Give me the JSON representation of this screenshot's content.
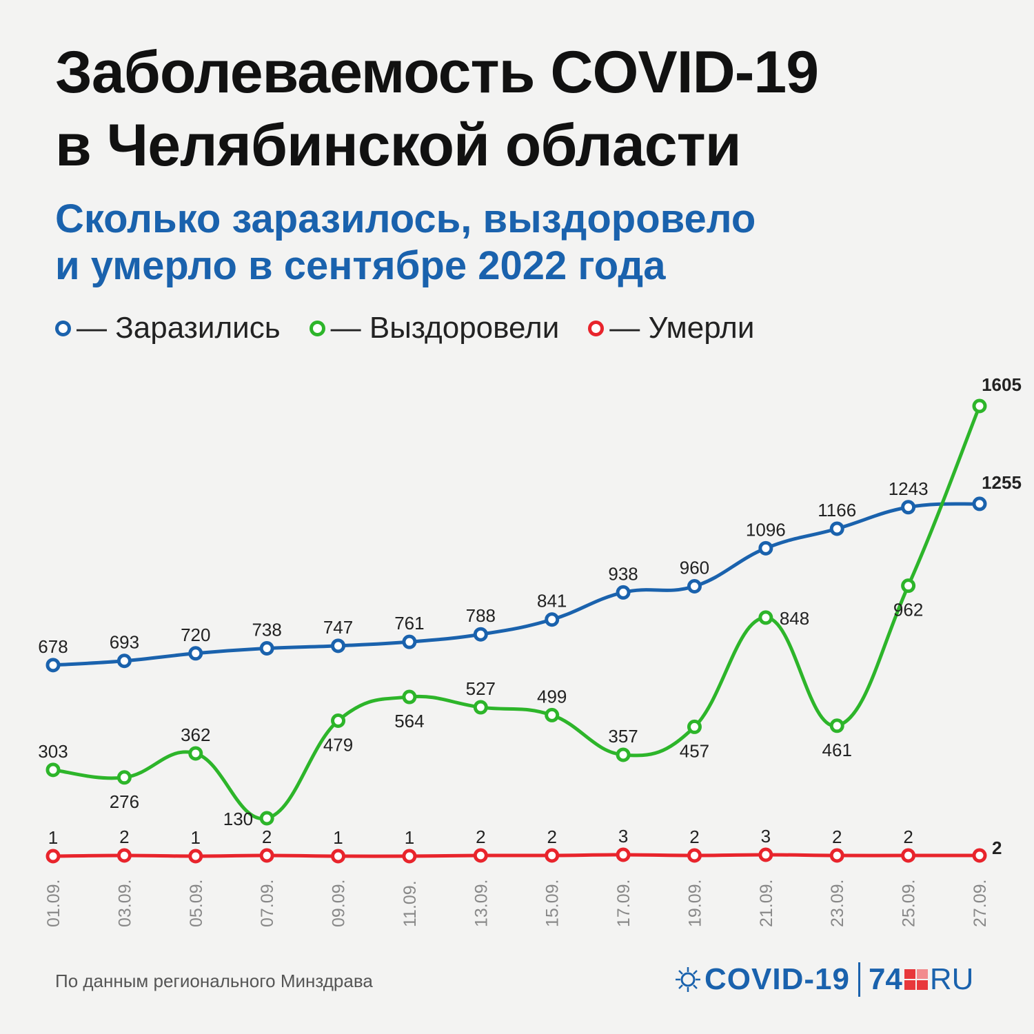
{
  "header": {
    "title_line1": "Заболеваемость COVID-19",
    "title_line2": "в Челябинской области",
    "subtitle_line1": "Сколько заразилось, выздоровело",
    "subtitle_line2": "и умерло в сентябре 2022 года"
  },
  "legend": [
    {
      "label": "— Заразились",
      "color": "#1a62ad"
    },
    {
      "label": "— Выздоровели",
      "color": "#2db52a"
    },
    {
      "label": "— Умерли",
      "color": "#e8242c"
    }
  ],
  "footer": {
    "source": "По данным регионального Минздрава",
    "logo_covid": "COVID-19",
    "logo_num": "74",
    "logo_ru": "RU"
  },
  "chart_data": {
    "type": "line",
    "x": [
      "01.09.",
      "03.09.",
      "05.09.",
      "07.09.",
      "09.09.",
      "11.09.",
      "13.09.",
      "15.09.",
      "17.09.",
      "19.09.",
      "21.09.",
      "23.09.",
      "25.09.",
      "27.09."
    ],
    "series": [
      {
        "name": "Заразились",
        "color": "#1a62ad",
        "values": [
          678,
          693,
          720,
          738,
          747,
          761,
          788,
          841,
          938,
          960,
          1096,
          1166,
          1243,
          1255
        ]
      },
      {
        "name": "Выздоровели",
        "color": "#2db52a",
        "values": [
          303,
          276,
          362,
          130,
          479,
          564,
          527,
          499,
          357,
          457,
          848,
          461,
          962,
          1605
        ]
      },
      {
        "name": "Умерли",
        "color": "#e8242c",
        "values": [
          1,
          2,
          1,
          2,
          1,
          1,
          2,
          2,
          3,
          2,
          3,
          2,
          2,
          2
        ]
      }
    ],
    "grid": false
  }
}
